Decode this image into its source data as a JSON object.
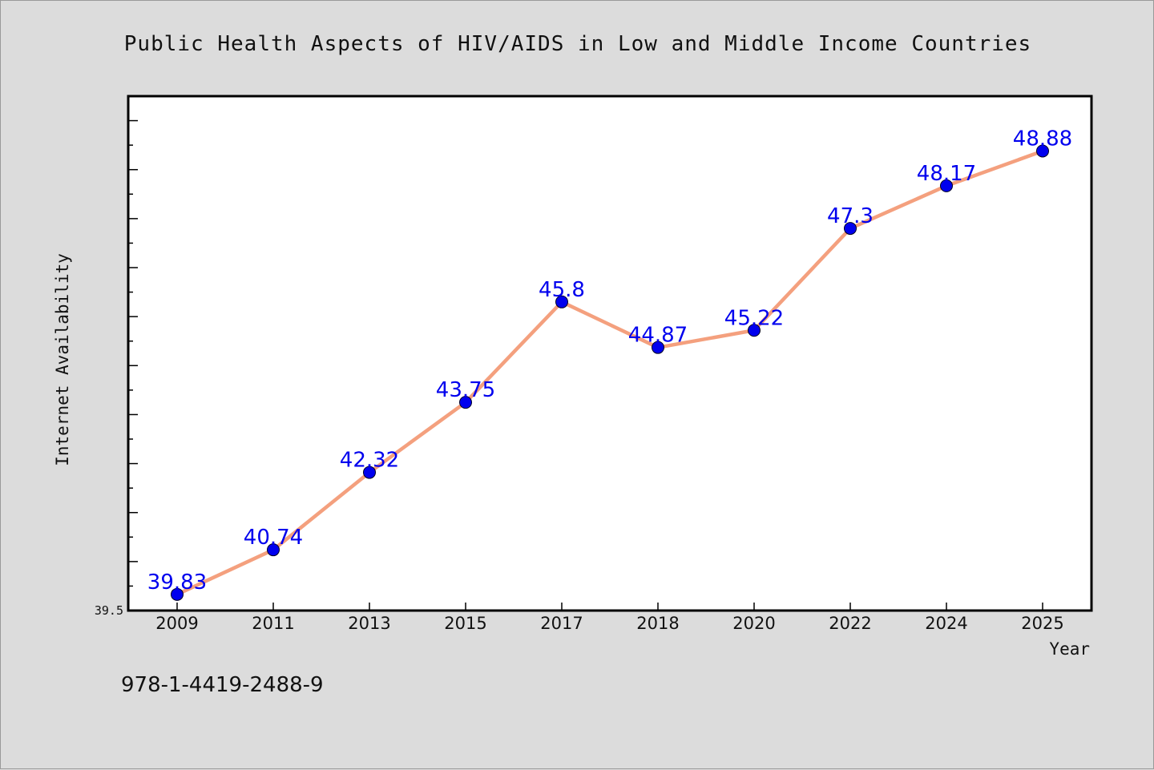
{
  "chart_data": {
    "type": "line",
    "title": "Public Health Aspects of HIV/AIDS in Low and Middle Income Countries",
    "xlabel": "Year",
    "ylabel": "Internet Availability",
    "categories": [
      "2009",
      "2011",
      "2013",
      "2015",
      "2017",
      "2018",
      "2020",
      "2022",
      "2024",
      "2025"
    ],
    "series": [
      {
        "values": [
          39.83,
          40.74,
          42.32,
          43.75,
          45.8,
          44.87,
          45.22,
          47.3,
          48.17,
          48.88
        ],
        "labels": [
          "39.83",
          "40.74",
          "42.32",
          "43.75",
          "45.8",
          "44.87",
          "45.22",
          "47.3",
          "48.17",
          "48.88"
        ]
      }
    ],
    "ylim": [
      39.5,
      50.0
    ],
    "yticks_labeled": [
      "39.5"
    ],
    "grid": false,
    "legend": "none",
    "colors": {
      "line": "#f4a07e",
      "marker": "#0000ee",
      "data_label": "#0000ee",
      "background": "#dcdcdc",
      "plot_background": "#ffffff"
    }
  },
  "footer": {
    "isbn": "978-1-4419-2488-9"
  }
}
